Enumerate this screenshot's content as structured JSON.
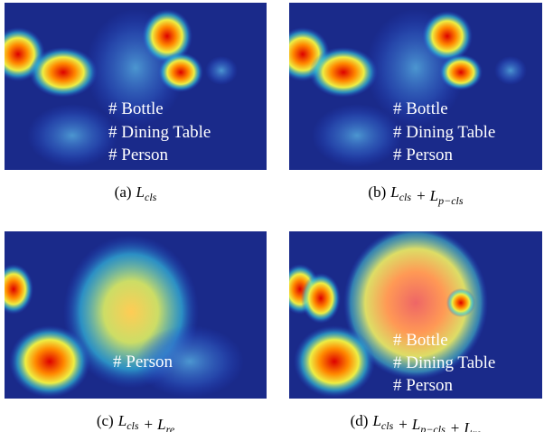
{
  "panels": [
    {
      "labels": [
        "# Bottle",
        "# Dining Table",
        "# Person"
      ],
      "caption": [
        {
          "text": "(a)"
        },
        {
          "base": "L",
          "sub": "cls"
        }
      ]
    },
    {
      "labels": [
        "# Bottle",
        "# Dining Table",
        "# Person"
      ],
      "caption": [
        {
          "text": "(b)"
        },
        {
          "base": "L",
          "sub": "cls"
        },
        {
          "op": "+"
        },
        {
          "base": "L",
          "sub": "p−cls"
        }
      ]
    },
    {
      "labels": [
        "# Person"
      ],
      "caption": [
        {
          "text": "(c)"
        },
        {
          "base": "L",
          "sub": "cls"
        },
        {
          "op": "+"
        },
        {
          "base": "L",
          "sub": "re"
        }
      ]
    },
    {
      "labels": [
        "# Bottle",
        "# Dining Table",
        "# Person"
      ],
      "caption": [
        {
          "text": "(d)"
        },
        {
          "base": "L",
          "sub": "cls"
        },
        {
          "op": "+"
        },
        {
          "base": "L",
          "sub": "p−cls"
        },
        {
          "op": "+"
        },
        {
          "base": "L",
          "sub": "re"
        }
      ]
    }
  ]
}
